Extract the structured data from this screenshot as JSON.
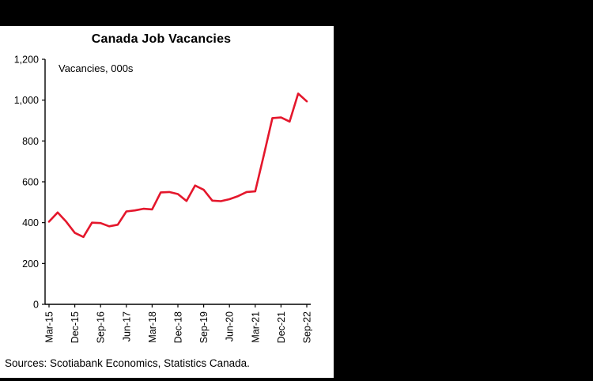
{
  "colors": {
    "line": "#e4172c",
    "axis": "#000000",
    "panel_background": "#ffffff",
    "page_background": "#000000"
  },
  "chart_data": {
    "type": "line",
    "title": "Canada Job Vacancies",
    "inner_label": "Vacancies, 000s",
    "source": "Sources: Scotiabank Economics, Statistics Canada.",
    "legend_position": "none",
    "grid": false,
    "ylim": [
      0,
      1200
    ],
    "ytick_interval": 200,
    "ytick_labels": [
      "0",
      "200",
      "400",
      "600",
      "800",
      "1,000",
      "1,200"
    ],
    "x": [
      "Mar-15",
      "Jun-15",
      "Sep-15",
      "Dec-15",
      "Mar-16",
      "Jun-16",
      "Sep-16",
      "Dec-16",
      "Mar-17",
      "Jun-17",
      "Sep-17",
      "Dec-17",
      "Mar-18",
      "Jun-18",
      "Sep-18",
      "Dec-18",
      "Mar-19",
      "Jun-19",
      "Sep-19",
      "Dec-19",
      "Mar-20",
      "Jun-20",
      "Sep-20",
      "Dec-20",
      "Mar-21",
      "Jun-21",
      "Sep-21",
      "Dec-21",
      "Mar-22",
      "Jun-22",
      "Sep-22"
    ],
    "xtick_labels": [
      "Mar-15",
      "Dec-15",
      "Sep-16",
      "Jun-17",
      "Mar-18",
      "Dec-18",
      "Sep-19",
      "Jun-20",
      "Mar-21",
      "Dec-21",
      "Sep-22"
    ],
    "xtick_every": 3,
    "series": [
      {
        "name": "Canada job vacancies (000s)",
        "values": [
          405,
          450,
          405,
          350,
          330,
          400,
          398,
          382,
          390,
          455,
          460,
          468,
          465,
          548,
          550,
          540,
          506,
          582,
          561,
          508,
          505,
          515,
          530,
          550,
          553,
          731,
          912,
          915,
          895,
          1032,
          994
        ]
      }
    ]
  }
}
